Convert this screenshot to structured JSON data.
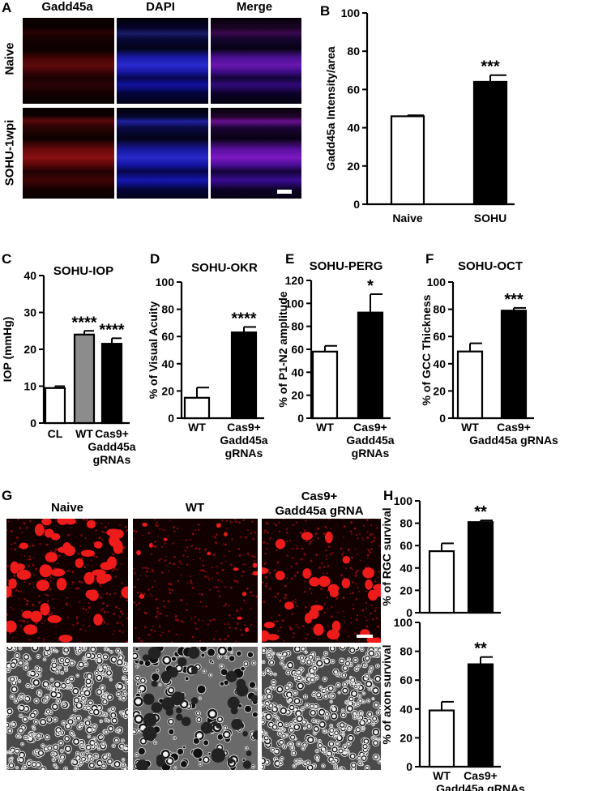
{
  "panel_labels": {
    "A": "A",
    "B": "B",
    "C": "C",
    "D": "D",
    "E": "E",
    "F": "F",
    "G": "G",
    "H": "H"
  },
  "panelA": {
    "columns": [
      "Gadd45a",
      "DAPI",
      "Merge"
    ],
    "rows": [
      "Naive",
      "SOHU-1wpi"
    ]
  },
  "panelG": {
    "columns": [
      "Naive",
      "WT",
      "Cas9+\nGadd45a gRNA"
    ]
  },
  "chart_data": [
    {
      "id": "B",
      "type": "bar",
      "title": "",
      "ylabel": "Gadd45a Intensity/area",
      "ylim": [
        0,
        100
      ],
      "yticks": [
        0,
        20,
        40,
        60,
        80,
        100
      ],
      "categories": [
        "Naive",
        "SOHU"
      ],
      "values": [
        46,
        64
      ],
      "errors": [
        0.5,
        3.5
      ],
      "fills": [
        "#ffffff",
        "#000000"
      ],
      "annotations": [
        "",
        "***"
      ]
    },
    {
      "id": "C",
      "type": "bar",
      "title": "SOHU-IOP",
      "ylabel": "IOP (mmHg)",
      "ylim": [
        0,
        40
      ],
      "yticks": [
        0,
        10,
        20,
        30,
        40
      ],
      "categories": [
        "CL",
        "WT",
        "Cas9+\nGadd45a\ngRNAs"
      ],
      "values": [
        9.5,
        24,
        21.5
      ],
      "errors": [
        0.5,
        1,
        1.5
      ],
      "fills": [
        "#ffffff",
        "#8c8c8c",
        "#000000"
      ],
      "annotations": [
        "",
        "****",
        "****"
      ]
    },
    {
      "id": "D",
      "type": "bar",
      "title": "SOHU-OKR",
      "ylabel": "% of Visual Acuity",
      "ylim": [
        0,
        100
      ],
      "yticks": [
        0,
        20,
        40,
        60,
        80,
        100
      ],
      "categories": [
        "WT",
        "Cas9+\nGadd45a\ngRNAs"
      ],
      "values": [
        15,
        63
      ],
      "errors": [
        7.5,
        4
      ],
      "fills": [
        "#ffffff",
        "#000000"
      ],
      "annotations": [
        "",
        "****"
      ]
    },
    {
      "id": "E",
      "type": "bar",
      "title": "SOHU-PERG",
      "ylabel": "% of P1-N2 amplitude",
      "ylim": [
        0,
        120
      ],
      "yticks": [
        0,
        20,
        40,
        60,
        80,
        100,
        120
      ],
      "categories": [
        "WT",
        "Cas9+\nGadd45a\ngRNAs"
      ],
      "values": [
        58,
        92
      ],
      "errors": [
        5,
        16
      ],
      "fills": [
        "#ffffff",
        "#000000"
      ],
      "annotations": [
        "",
        "*"
      ]
    },
    {
      "id": "F",
      "type": "bar",
      "title": "SOHU-OCT",
      "ylabel": "% of GCC Thickness",
      "ylim": [
        0,
        100
      ],
      "yticks": [
        0,
        20,
        40,
        60,
        80,
        100
      ],
      "categories": [
        "WT",
        "Cas9+\nGadd45a gRNAs"
      ],
      "values": [
        49,
        79
      ],
      "errors": [
        6,
        2
      ],
      "fills": [
        "#ffffff",
        "#000000"
      ],
      "annotations": [
        "",
        "***"
      ]
    },
    {
      "id": "H1",
      "type": "bar",
      "title": "",
      "ylabel": "% of RGC survival",
      "ylim": [
        0,
        100
      ],
      "yticks": [
        0,
        20,
        40,
        60,
        80,
        100
      ],
      "categories": [
        "",
        ""
      ],
      "values": [
        55,
        81
      ],
      "errors": [
        7,
        1.5
      ],
      "fills": [
        "#ffffff",
        "#000000"
      ],
      "annotations": [
        "",
        "**"
      ]
    },
    {
      "id": "H2",
      "type": "bar",
      "title": "",
      "ylabel": "% of axon survival",
      "ylim": [
        0,
        100
      ],
      "yticks": [
        0,
        20,
        40,
        60,
        80,
        100
      ],
      "categories": [
        "WT",
        "Cas9+\nGadd45a gRNAs"
      ],
      "values": [
        39,
        71
      ],
      "errors": [
        6,
        5
      ],
      "fills": [
        "#ffffff",
        "#000000"
      ],
      "annotations": [
        "",
        "**"
      ]
    }
  ]
}
